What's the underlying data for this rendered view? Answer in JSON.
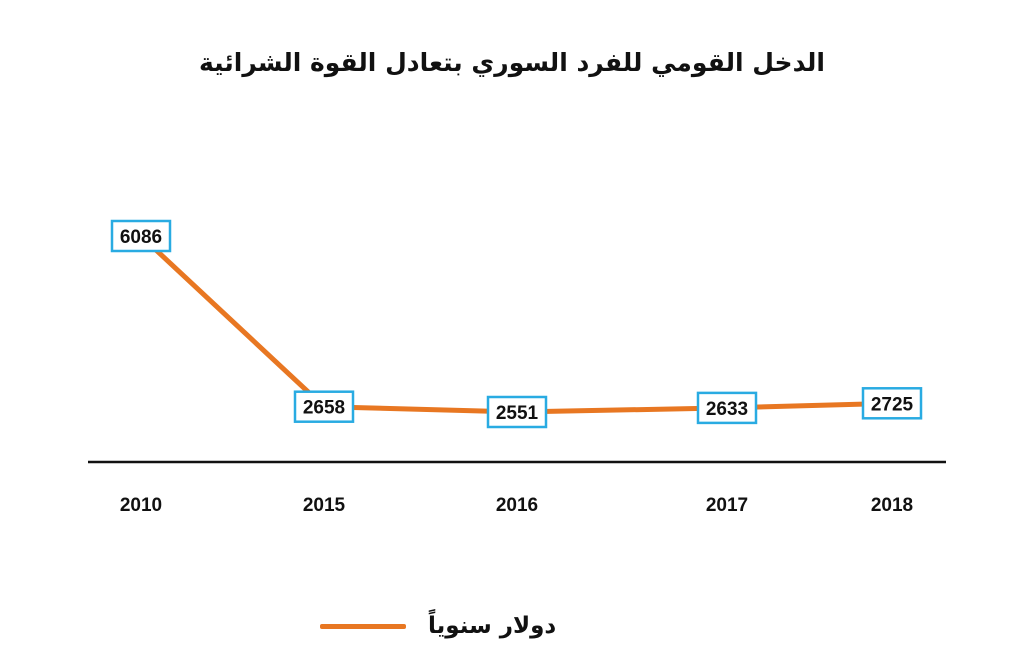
{
  "chart_data": {
    "type": "line",
    "title": "الدخل القومي للفرد السوري بتعادل القوة الشرائية",
    "categories": [
      "2010",
      "2015",
      "2016",
      "2017",
      "2018"
    ],
    "series": [
      {
        "name": "دولار سنوياً",
        "values": [
          6086,
          2658,
          2551,
          2633,
          2725
        ],
        "color": "#E87722"
      }
    ],
    "data_labels": [
      "6086",
      "2658",
      "2551",
      "2633",
      "2725"
    ],
    "label_box_color": "#29ABE2",
    "axis_color": "#111111",
    "grid": false,
    "legend_position": "bottom-center"
  }
}
